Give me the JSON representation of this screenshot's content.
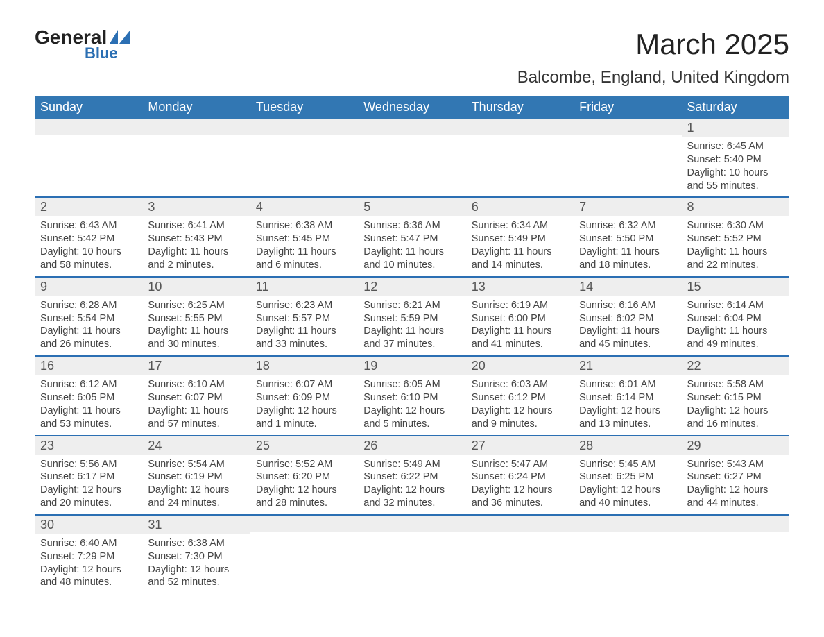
{
  "logo": {
    "word1": "General",
    "word2": "Blue"
  },
  "title": "March 2025",
  "location": "Balcombe, England, United Kingdom",
  "colors": {
    "header_bg": "#3277b3",
    "header_fg": "#ffffff",
    "row_sep": "#2b6fb3",
    "daynum_bg": "#eeeeee",
    "text": "#444444",
    "title": "#222222"
  },
  "weekdays": [
    "Sunday",
    "Monday",
    "Tuesday",
    "Wednesday",
    "Thursday",
    "Friday",
    "Saturday"
  ],
  "weeks": [
    [
      {
        "n": "",
        "sr": "",
        "ss": "",
        "dl": ""
      },
      {
        "n": "",
        "sr": "",
        "ss": "",
        "dl": ""
      },
      {
        "n": "",
        "sr": "",
        "ss": "",
        "dl": ""
      },
      {
        "n": "",
        "sr": "",
        "ss": "",
        "dl": ""
      },
      {
        "n": "",
        "sr": "",
        "ss": "",
        "dl": ""
      },
      {
        "n": "",
        "sr": "",
        "ss": "",
        "dl": ""
      },
      {
        "n": "1",
        "sr": "Sunrise: 6:45 AM",
        "ss": "Sunset: 5:40 PM",
        "dl": "Daylight: 10 hours and 55 minutes."
      }
    ],
    [
      {
        "n": "2",
        "sr": "Sunrise: 6:43 AM",
        "ss": "Sunset: 5:42 PM",
        "dl": "Daylight: 10 hours and 58 minutes."
      },
      {
        "n": "3",
        "sr": "Sunrise: 6:41 AM",
        "ss": "Sunset: 5:43 PM",
        "dl": "Daylight: 11 hours and 2 minutes."
      },
      {
        "n": "4",
        "sr": "Sunrise: 6:38 AM",
        "ss": "Sunset: 5:45 PM",
        "dl": "Daylight: 11 hours and 6 minutes."
      },
      {
        "n": "5",
        "sr": "Sunrise: 6:36 AM",
        "ss": "Sunset: 5:47 PM",
        "dl": "Daylight: 11 hours and 10 minutes."
      },
      {
        "n": "6",
        "sr": "Sunrise: 6:34 AM",
        "ss": "Sunset: 5:49 PM",
        "dl": "Daylight: 11 hours and 14 minutes."
      },
      {
        "n": "7",
        "sr": "Sunrise: 6:32 AM",
        "ss": "Sunset: 5:50 PM",
        "dl": "Daylight: 11 hours and 18 minutes."
      },
      {
        "n": "8",
        "sr": "Sunrise: 6:30 AM",
        "ss": "Sunset: 5:52 PM",
        "dl": "Daylight: 11 hours and 22 minutes."
      }
    ],
    [
      {
        "n": "9",
        "sr": "Sunrise: 6:28 AM",
        "ss": "Sunset: 5:54 PM",
        "dl": "Daylight: 11 hours and 26 minutes."
      },
      {
        "n": "10",
        "sr": "Sunrise: 6:25 AM",
        "ss": "Sunset: 5:55 PM",
        "dl": "Daylight: 11 hours and 30 minutes."
      },
      {
        "n": "11",
        "sr": "Sunrise: 6:23 AM",
        "ss": "Sunset: 5:57 PM",
        "dl": "Daylight: 11 hours and 33 minutes."
      },
      {
        "n": "12",
        "sr": "Sunrise: 6:21 AM",
        "ss": "Sunset: 5:59 PM",
        "dl": "Daylight: 11 hours and 37 minutes."
      },
      {
        "n": "13",
        "sr": "Sunrise: 6:19 AM",
        "ss": "Sunset: 6:00 PM",
        "dl": "Daylight: 11 hours and 41 minutes."
      },
      {
        "n": "14",
        "sr": "Sunrise: 6:16 AM",
        "ss": "Sunset: 6:02 PM",
        "dl": "Daylight: 11 hours and 45 minutes."
      },
      {
        "n": "15",
        "sr": "Sunrise: 6:14 AM",
        "ss": "Sunset: 6:04 PM",
        "dl": "Daylight: 11 hours and 49 minutes."
      }
    ],
    [
      {
        "n": "16",
        "sr": "Sunrise: 6:12 AM",
        "ss": "Sunset: 6:05 PM",
        "dl": "Daylight: 11 hours and 53 minutes."
      },
      {
        "n": "17",
        "sr": "Sunrise: 6:10 AM",
        "ss": "Sunset: 6:07 PM",
        "dl": "Daylight: 11 hours and 57 minutes."
      },
      {
        "n": "18",
        "sr": "Sunrise: 6:07 AM",
        "ss": "Sunset: 6:09 PM",
        "dl": "Daylight: 12 hours and 1 minute."
      },
      {
        "n": "19",
        "sr": "Sunrise: 6:05 AM",
        "ss": "Sunset: 6:10 PM",
        "dl": "Daylight: 12 hours and 5 minutes."
      },
      {
        "n": "20",
        "sr": "Sunrise: 6:03 AM",
        "ss": "Sunset: 6:12 PM",
        "dl": "Daylight: 12 hours and 9 minutes."
      },
      {
        "n": "21",
        "sr": "Sunrise: 6:01 AM",
        "ss": "Sunset: 6:14 PM",
        "dl": "Daylight: 12 hours and 13 minutes."
      },
      {
        "n": "22",
        "sr": "Sunrise: 5:58 AM",
        "ss": "Sunset: 6:15 PM",
        "dl": "Daylight: 12 hours and 16 minutes."
      }
    ],
    [
      {
        "n": "23",
        "sr": "Sunrise: 5:56 AM",
        "ss": "Sunset: 6:17 PM",
        "dl": "Daylight: 12 hours and 20 minutes."
      },
      {
        "n": "24",
        "sr": "Sunrise: 5:54 AM",
        "ss": "Sunset: 6:19 PM",
        "dl": "Daylight: 12 hours and 24 minutes."
      },
      {
        "n": "25",
        "sr": "Sunrise: 5:52 AM",
        "ss": "Sunset: 6:20 PM",
        "dl": "Daylight: 12 hours and 28 minutes."
      },
      {
        "n": "26",
        "sr": "Sunrise: 5:49 AM",
        "ss": "Sunset: 6:22 PM",
        "dl": "Daylight: 12 hours and 32 minutes."
      },
      {
        "n": "27",
        "sr": "Sunrise: 5:47 AM",
        "ss": "Sunset: 6:24 PM",
        "dl": "Daylight: 12 hours and 36 minutes."
      },
      {
        "n": "28",
        "sr": "Sunrise: 5:45 AM",
        "ss": "Sunset: 6:25 PM",
        "dl": "Daylight: 12 hours and 40 minutes."
      },
      {
        "n": "29",
        "sr": "Sunrise: 5:43 AM",
        "ss": "Sunset: 6:27 PM",
        "dl": "Daylight: 12 hours and 44 minutes."
      }
    ],
    [
      {
        "n": "30",
        "sr": "Sunrise: 6:40 AM",
        "ss": "Sunset: 7:29 PM",
        "dl": "Daylight: 12 hours and 48 minutes."
      },
      {
        "n": "31",
        "sr": "Sunrise: 6:38 AM",
        "ss": "Sunset: 7:30 PM",
        "dl": "Daylight: 12 hours and 52 minutes."
      },
      {
        "n": "",
        "sr": "",
        "ss": "",
        "dl": ""
      },
      {
        "n": "",
        "sr": "",
        "ss": "",
        "dl": ""
      },
      {
        "n": "",
        "sr": "",
        "ss": "",
        "dl": ""
      },
      {
        "n": "",
        "sr": "",
        "ss": "",
        "dl": ""
      },
      {
        "n": "",
        "sr": "",
        "ss": "",
        "dl": ""
      }
    ]
  ]
}
